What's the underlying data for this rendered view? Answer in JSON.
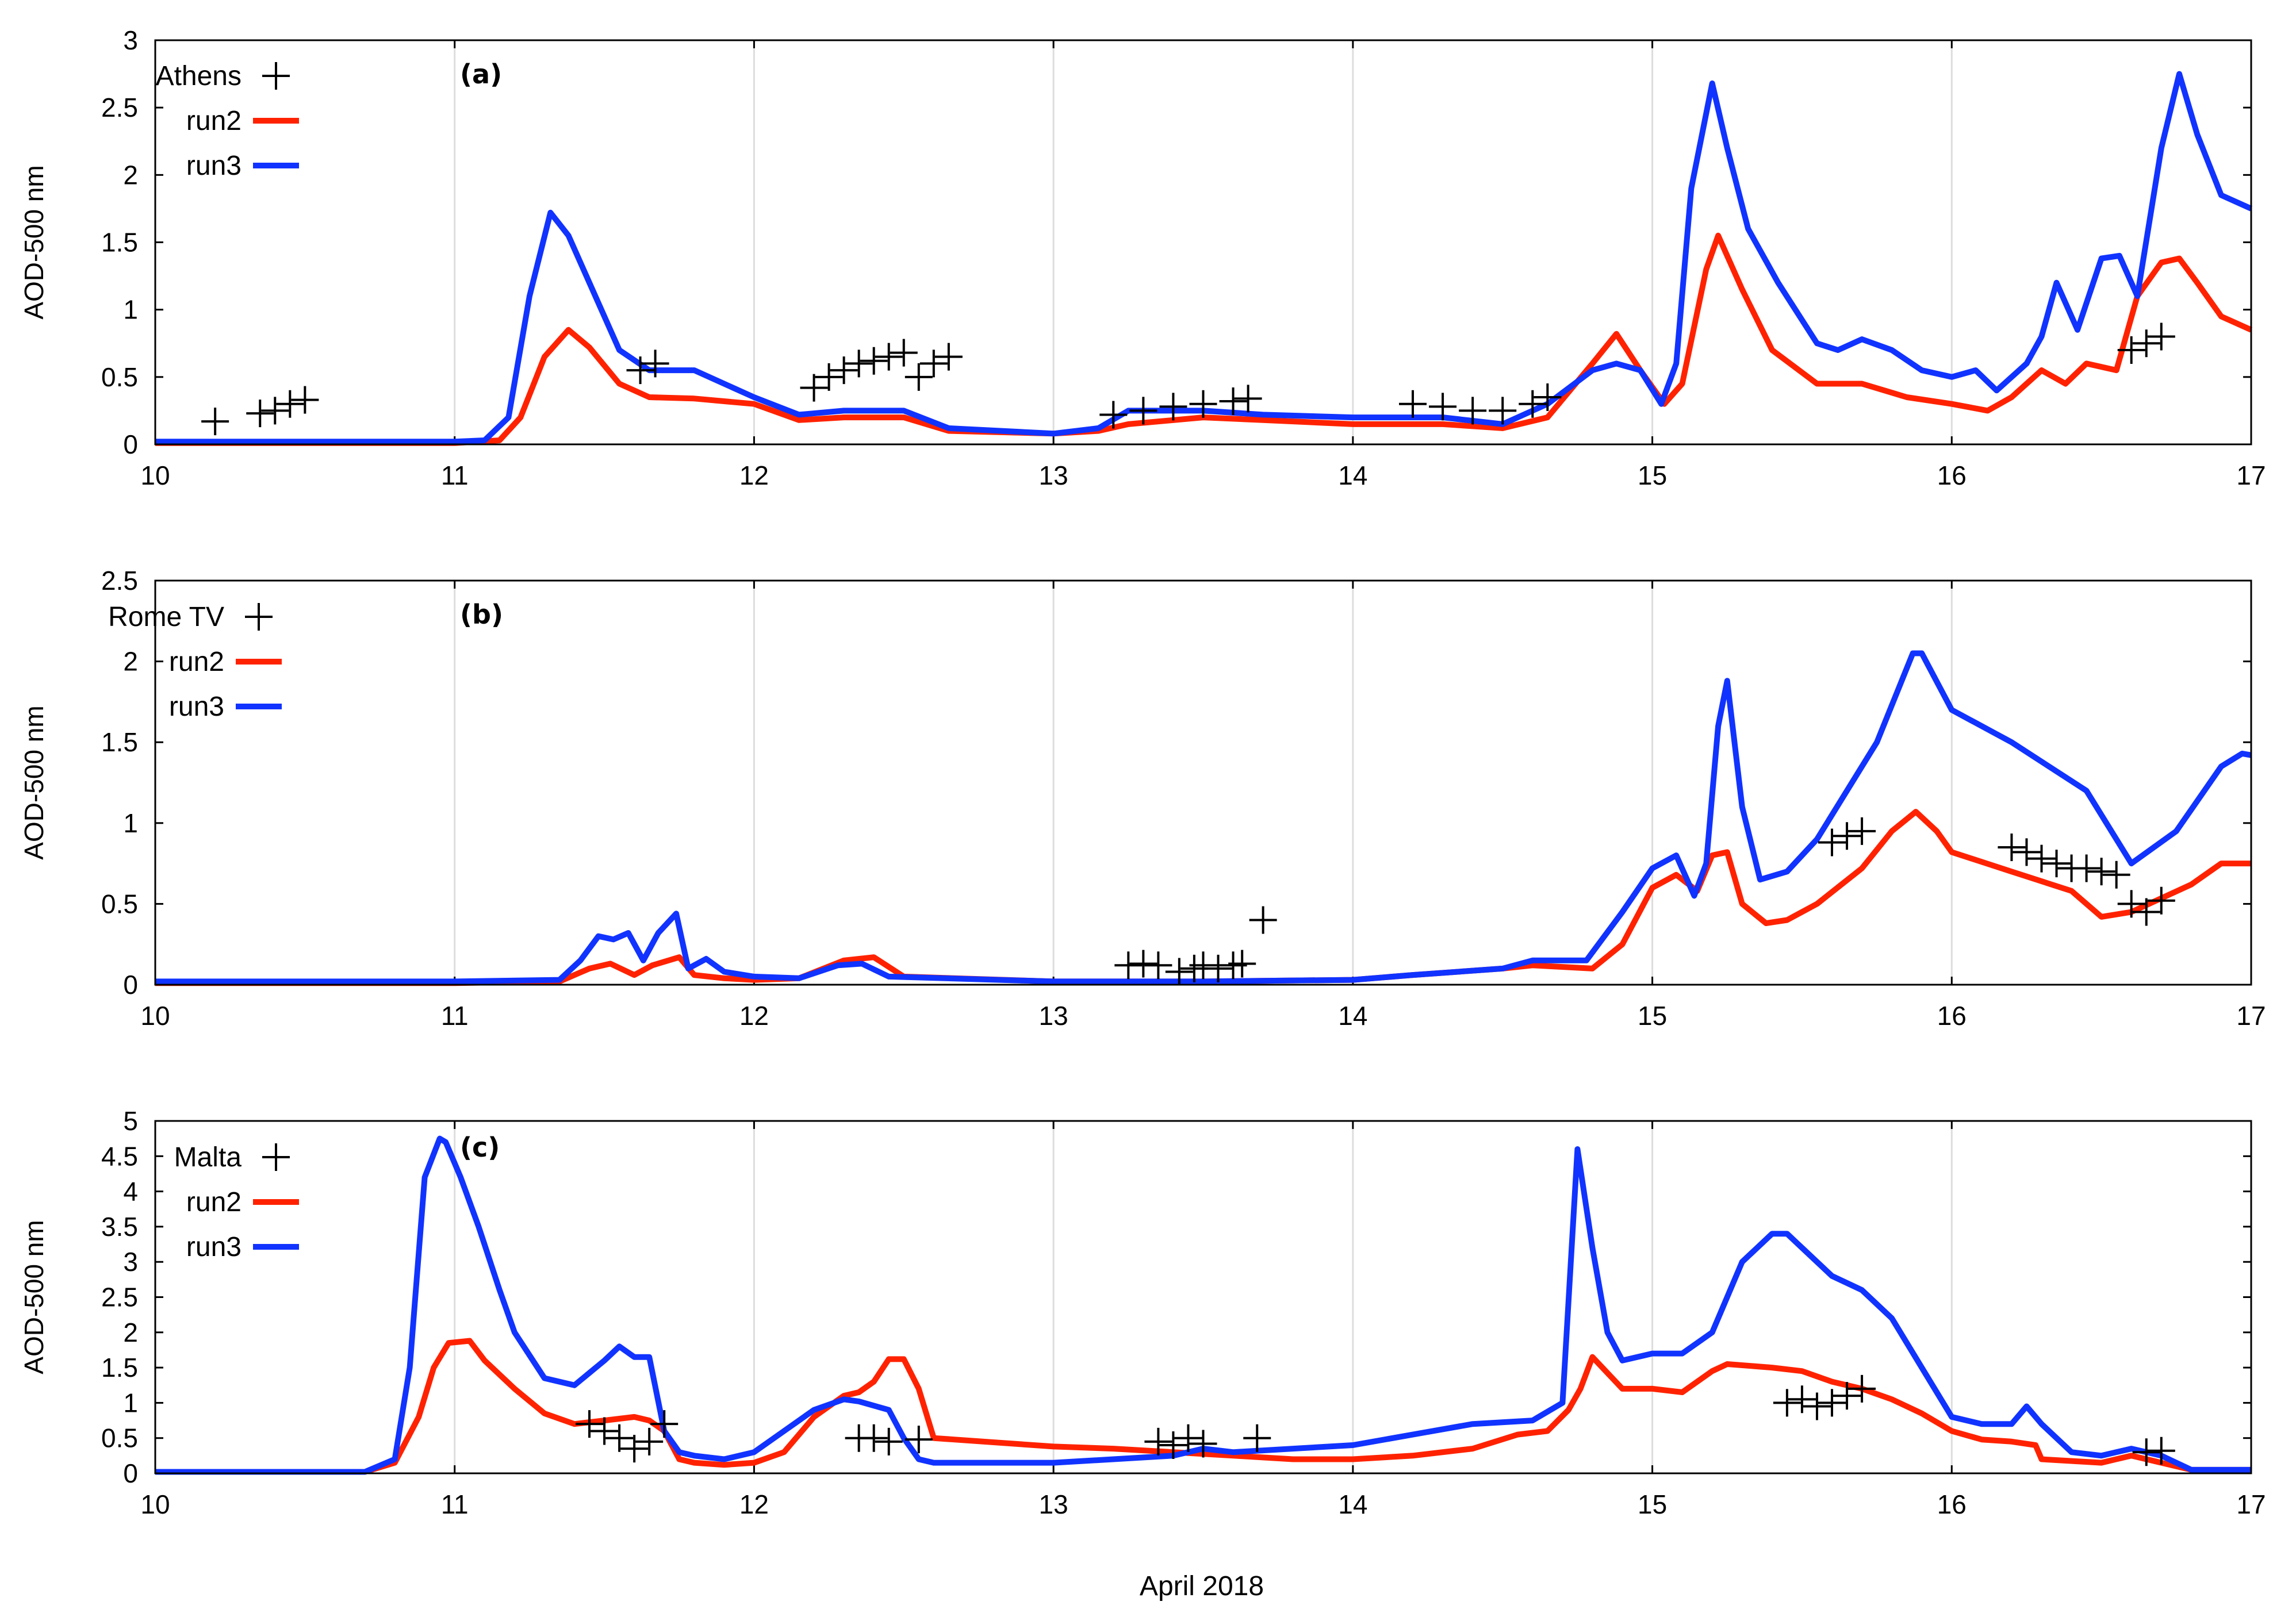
{
  "figure": {
    "xlabel": "April 2018"
  },
  "colors": {
    "run2": "#ff2200",
    "run3": "#1133ff",
    "obs": "#000000",
    "grid": "#dddddd"
  },
  "chart_data": [
    {
      "type": "line",
      "panel_label": "(a)",
      "station": "Athens",
      "ylabel": "AOD-500 nm",
      "xlim": [
        10,
        17
      ],
      "ylim": [
        0,
        3
      ],
      "xticks": [
        "10",
        "11",
        "12",
        "13",
        "14",
        "15",
        "16",
        "17"
      ],
      "yticks": [
        "0",
        "0.5",
        "1",
        "1.5",
        "2",
        "2.5",
        "3"
      ],
      "legend": [
        "Athens",
        "run2",
        "run3"
      ],
      "series": [
        {
          "name": "run2",
          "x": [
            10,
            11,
            11.15,
            11.22,
            11.3,
            11.38,
            11.45,
            11.55,
            11.65,
            11.8,
            12,
            12.15,
            12.3,
            12.5,
            12.65,
            13,
            13.15,
            13.25,
            13.5,
            13.7,
            14,
            14.3,
            14.5,
            14.65,
            14.8,
            14.88,
            14.96,
            15.04,
            15.1,
            15.18,
            15.22,
            15.3,
            15.4,
            15.55,
            15.7,
            15.85,
            16,
            16.12,
            16.2,
            16.3,
            16.38,
            16.45,
            16.55,
            16.62,
            16.7,
            16.76,
            16.82,
            16.9,
            17
          ],
          "y": [
            0.01,
            0.01,
            0.03,
            0.2,
            0.65,
            0.85,
            0.72,
            0.45,
            0.35,
            0.34,
            0.3,
            0.18,
            0.2,
            0.2,
            0.1,
            0.08,
            0.1,
            0.15,
            0.2,
            0.18,
            0.15,
            0.15,
            0.12,
            0.2,
            0.6,
            0.82,
            0.55,
            0.3,
            0.45,
            1.3,
            1.55,
            1.15,
            0.7,
            0.45,
            0.45,
            0.35,
            0.3,
            0.25,
            0.35,
            0.55,
            0.45,
            0.6,
            0.55,
            1.1,
            1.35,
            1.38,
            1.2,
            0.95,
            0.85
          ]
        },
        {
          "name": "run3",
          "x": [
            10,
            11,
            11.1,
            11.18,
            11.25,
            11.32,
            11.38,
            11.45,
            11.55,
            11.65,
            11.8,
            12,
            12.15,
            12.3,
            12.5,
            12.65,
            13,
            13.15,
            13.25,
            13.5,
            13.7,
            14,
            14.3,
            14.5,
            14.65,
            14.8,
            14.88,
            14.96,
            15.03,
            15.08,
            15.13,
            15.2,
            15.25,
            15.32,
            15.42,
            15.55,
            15.62,
            15.7,
            15.8,
            15.9,
            16,
            16.08,
            16.15,
            16.25,
            16.3,
            16.35,
            16.42,
            16.5,
            16.56,
            16.62,
            16.7,
            16.76,
            16.82,
            16.9,
            17
          ],
          "y": [
            0.02,
            0.02,
            0.03,
            0.2,
            1.1,
            1.72,
            1.55,
            1.2,
            0.7,
            0.55,
            0.55,
            0.35,
            0.22,
            0.25,
            0.25,
            0.12,
            0.08,
            0.12,
            0.25,
            0.25,
            0.22,
            0.2,
            0.2,
            0.15,
            0.3,
            0.55,
            0.6,
            0.55,
            0.3,
            0.6,
            1.9,
            2.68,
            2.2,
            1.6,
            1.2,
            0.75,
            0.7,
            0.78,
            0.7,
            0.55,
            0.5,
            0.55,
            0.4,
            0.6,
            0.8,
            1.2,
            0.85,
            1.38,
            1.4,
            1.1,
            2.2,
            2.75,
            2.3,
            1.85,
            1.75
          ]
        },
        {
          "name": "Athens",
          "marker": "plus",
          "x": [
            10.2,
            10.35,
            10.4,
            10.45,
            10.5,
            11.62,
            11.67,
            12.2,
            12.25,
            12.3,
            12.35,
            12.4,
            12.45,
            12.5,
            12.55,
            12.6,
            12.65,
            13.2,
            13.3,
            13.4,
            13.5,
            13.6,
            13.65,
            14.2,
            14.3,
            14.4,
            14.5,
            14.6,
            14.65,
            16.6,
            16.65,
            16.7
          ],
          "y": [
            0.17,
            0.23,
            0.25,
            0.3,
            0.33,
            0.55,
            0.6,
            0.42,
            0.5,
            0.55,
            0.6,
            0.62,
            0.65,
            0.68,
            0.5,
            0.6,
            0.65,
            0.22,
            0.25,
            0.28,
            0.3,
            0.32,
            0.34,
            0.3,
            0.28,
            0.25,
            0.25,
            0.3,
            0.35,
            0.7,
            0.75,
            0.8
          ]
        }
      ]
    },
    {
      "type": "line",
      "panel_label": "(b)",
      "station": "Rome TV",
      "ylabel": "AOD-500 nm",
      "xlim": [
        10,
        17
      ],
      "ylim": [
        0,
        2.5
      ],
      "xticks": [
        "10",
        "11",
        "12",
        "13",
        "14",
        "15",
        "16",
        "17"
      ],
      "yticks": [
        "0",
        "0.5",
        "1",
        "1.5",
        "2",
        "2.5"
      ],
      "legend": [
        "Rome TV",
        "run2",
        "run3"
      ],
      "series": [
        {
          "name": "run2",
          "x": [
            10,
            11,
            11.35,
            11.45,
            11.52,
            11.6,
            11.66,
            11.75,
            11.8,
            11.9,
            12,
            12.15,
            12.3,
            12.4,
            12.5,
            13,
            13.5,
            14,
            14.2,
            14.5,
            14.6,
            14.8,
            14.9,
            15,
            15.08,
            15.15,
            15.2,
            15.25,
            15.3,
            15.38,
            15.45,
            15.55,
            15.7,
            15.8,
            15.88,
            15.95,
            16,
            16.2,
            16.4,
            16.5,
            16.6,
            16.8,
            16.9,
            17
          ],
          "y": [
            0.01,
            0.01,
            0.02,
            0.1,
            0.13,
            0.06,
            0.12,
            0.17,
            0.06,
            0.04,
            0.03,
            0.04,
            0.15,
            0.17,
            0.05,
            0.02,
            0.02,
            0.03,
            0.06,
            0.1,
            0.12,
            0.1,
            0.25,
            0.6,
            0.68,
            0.58,
            0.8,
            0.82,
            0.5,
            0.38,
            0.4,
            0.5,
            0.72,
            0.95,
            1.07,
            0.95,
            0.82,
            0.7,
            0.58,
            0.42,
            0.45,
            0.62,
            0.75,
            0.75
          ]
        },
        {
          "name": "run3",
          "x": [
            10,
            11,
            11.35,
            11.42,
            11.48,
            11.53,
            11.58,
            11.63,
            11.68,
            11.74,
            11.78,
            11.84,
            11.9,
            12,
            12.15,
            12.28,
            12.36,
            12.45,
            13,
            13.5,
            14,
            14.2,
            14.5,
            14.6,
            14.78,
            14.9,
            15,
            15.08,
            15.14,
            15.18,
            15.22,
            15.25,
            15.3,
            15.36,
            15.45,
            15.55,
            15.65,
            15.75,
            15.87,
            15.9,
            16,
            16.2,
            16.45,
            16.6,
            16.75,
            16.9,
            16.97,
            17
          ],
          "y": [
            0.02,
            0.02,
            0.03,
            0.15,
            0.3,
            0.28,
            0.32,
            0.15,
            0.32,
            0.44,
            0.1,
            0.16,
            0.08,
            0.05,
            0.04,
            0.12,
            0.13,
            0.05,
            0.02,
            0.02,
            0.03,
            0.06,
            0.1,
            0.15,
            0.15,
            0.45,
            0.72,
            0.8,
            0.55,
            0.75,
            1.6,
            1.88,
            1.1,
            0.65,
            0.7,
            0.9,
            1.2,
            1.5,
            2.05,
            2.05,
            1.7,
            1.5,
            1.2,
            0.75,
            0.95,
            1.35,
            1.43,
            1.42
          ]
        },
        {
          "name": "Rome TV",
          "marker": "plus",
          "x": [
            13.25,
            13.3,
            13.35,
            13.42,
            13.47,
            13.5,
            13.55,
            13.6,
            13.63,
            13.7,
            15.6,
            15.65,
            15.7,
            16.2,
            16.25,
            16.3,
            16.35,
            16.4,
            16.45,
            16.5,
            16.55,
            16.6,
            16.65,
            16.7
          ],
          "y": [
            0.12,
            0.13,
            0.12,
            0.08,
            0.1,
            0.12,
            0.1,
            0.12,
            0.13,
            0.4,
            0.88,
            0.92,
            0.95,
            0.85,
            0.82,
            0.78,
            0.75,
            0.72,
            0.72,
            0.7,
            0.68,
            0.5,
            0.45,
            0.52
          ]
        }
      ]
    },
    {
      "type": "line",
      "panel_label": "(c)",
      "station": "Malta",
      "ylabel": "AOD-500 nm",
      "xlim": [
        10,
        17
      ],
      "ylim": [
        0,
        5
      ],
      "xticks": [
        "10",
        "11",
        "12",
        "13",
        "14",
        "15",
        "16",
        "17"
      ],
      "yticks": [
        "0",
        "0.5",
        "1",
        "1.5",
        "2",
        "2.5",
        "3",
        "3.5",
        "4",
        "4.5",
        "5"
      ],
      "legend": [
        "Malta",
        "run2",
        "run3"
      ],
      "series": [
        {
          "name": "run2",
          "x": [
            10,
            10.7,
            10.8,
            10.88,
            10.93,
            10.98,
            11.05,
            11.1,
            11.2,
            11.3,
            11.4,
            11.5,
            11.6,
            11.65,
            11.7,
            11.75,
            11.8,
            11.9,
            12,
            12.1,
            12.2,
            12.3,
            12.35,
            12.4,
            12.45,
            12.5,
            12.55,
            12.6,
            13,
            13.2,
            13.4,
            13.6,
            13.8,
            14,
            14.2,
            14.4,
            14.55,
            14.65,
            14.72,
            14.76,
            14.8,
            14.9,
            15,
            15.1,
            15.2,
            15.25,
            15.4,
            15.5,
            15.6,
            15.7,
            15.8,
            15.9,
            16,
            16.1,
            16.2,
            16.28,
            16.3,
            16.5,
            16.6,
            16.7,
            16.8,
            16.9,
            17
          ],
          "y": [
            0.02,
            0.02,
            0.15,
            0.8,
            1.5,
            1.85,
            1.88,
            1.6,
            1.2,
            0.85,
            0.7,
            0.75,
            0.8,
            0.75,
            0.6,
            0.2,
            0.15,
            0.12,
            0.15,
            0.3,
            0.8,
            1.1,
            1.15,
            1.3,
            1.62,
            1.62,
            1.2,
            0.5,
            0.38,
            0.35,
            0.3,
            0.25,
            0.2,
            0.2,
            0.25,
            0.35,
            0.55,
            0.6,
            0.9,
            1.2,
            1.65,
            1.2,
            1.2,
            1.15,
            1.45,
            1.55,
            1.5,
            1.45,
            1.3,
            1.2,
            1.05,
            0.85,
            0.6,
            0.48,
            0.45,
            0.4,
            0.2,
            0.15,
            0.25,
            0.15,
            0.05,
            0.05,
            0.05
          ]
        },
        {
          "name": "run3",
          "x": [
            10,
            10.7,
            10.8,
            10.85,
            10.9,
            10.95,
            10.97,
            11.02,
            11.08,
            11.15,
            11.2,
            11.3,
            11.4,
            11.5,
            11.55,
            11.6,
            11.65,
            11.7,
            11.75,
            11.8,
            11.9,
            12,
            12.1,
            12.2,
            12.3,
            12.35,
            12.45,
            12.5,
            12.55,
            12.6,
            13,
            13.2,
            13.4,
            13.5,
            13.6,
            14,
            14.2,
            14.4,
            14.6,
            14.7,
            14.75,
            14.8,
            14.85,
            14.9,
            15,
            15.1,
            15.2,
            15.3,
            15.4,
            15.45,
            15.5,
            15.6,
            15.7,
            15.8,
            15.9,
            16,
            16.1,
            16.2,
            16.25,
            16.3,
            16.4,
            16.5,
            16.6,
            16.7,
            16.8,
            16.9,
            17
          ],
          "y": [
            0.02,
            0.02,
            0.2,
            1.5,
            4.2,
            4.75,
            4.7,
            4.2,
            3.5,
            2.6,
            2.0,
            1.35,
            1.25,
            1.6,
            1.8,
            1.65,
            1.65,
            0.6,
            0.3,
            0.25,
            0.2,
            0.3,
            0.6,
            0.9,
            1.05,
            1.02,
            0.9,
            0.5,
            0.2,
            0.15,
            0.15,
            0.2,
            0.25,
            0.35,
            0.3,
            0.4,
            0.55,
            0.7,
            0.75,
            1.0,
            4.6,
            3.2,
            2.0,
            1.6,
            1.7,
            1.7,
            2.0,
            3.0,
            3.4,
            3.4,
            3.2,
            2.8,
            2.6,
            2.2,
            1.5,
            0.8,
            0.7,
            0.7,
            0.95,
            0.7,
            0.3,
            0.25,
            0.35,
            0.25,
            0.05,
            0.05,
            0.05
          ]
        },
        {
          "name": "Malta",
          "marker": "plus",
          "x": [
            11.45,
            11.5,
            11.55,
            11.6,
            11.65,
            11.7,
            12.35,
            12.4,
            12.45,
            12.55,
            13.35,
            13.4,
            13.45,
            13.5,
            13.68,
            15.45,
            15.5,
            15.55,
            15.6,
            15.65,
            15.7,
            16.65,
            16.7
          ],
          "y": [
            0.7,
            0.6,
            0.5,
            0.35,
            0.45,
            0.7,
            0.5,
            0.5,
            0.45,
            0.48,
            0.45,
            0.4,
            0.5,
            0.42,
            0.5,
            1.0,
            1.05,
            0.95,
            1.0,
            1.1,
            1.2,
            0.3,
            0.32
          ]
        }
      ]
    }
  ]
}
